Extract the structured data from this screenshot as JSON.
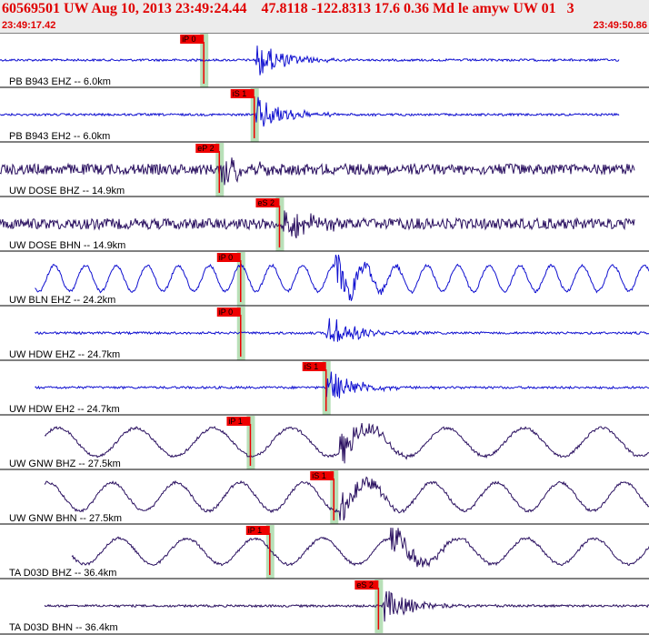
{
  "header": {
    "title": "60569501 UW Aug 10, 2013 23:49:24.44    47.8118 -122.8313 17.6 0.36 Md le amyw UW 01   3",
    "time_start": "23:49:17.42",
    "time_end": "23:49:50.86"
  },
  "colors": {
    "header_text": "#e00000",
    "header_bg": "#ececec",
    "pick_box": "#ee0000",
    "window_band": "#b8e0b8",
    "trace_blue": "#1010d0",
    "trace_dark": "#2a1060",
    "travel_curve": "#000000"
  },
  "chart_data": {
    "type": "line",
    "title": "60569501 UW Aug 10, 2013 23:49:24.44    47.8118 -122.8313 17.6 0.36 Md le amyw UW 01   3",
    "x_unit": "time",
    "xlim": [
      "23:49:17.42",
      "23:49:50.86"
    ],
    "x_span_seconds": 33.44,
    "series": [
      {
        "name": "PB B943 EHZ -- 6.0km",
        "color": "blue",
        "x_range_s": [
          0.0,
          31.9
        ],
        "pick": {
          "label": "iP 0",
          "time_s": 10.5
        },
        "amp": 0.45,
        "wave": "burst",
        "burst_s": 13.2,
        "period_s": 0.1
      },
      {
        "name": "PB B943 EH2 -- 6.0km",
        "color": "blue",
        "x_range_s": [
          0.0,
          31.9
        ],
        "pick": {
          "label": "iS 1",
          "time_s": 13.1
        },
        "amp": 0.05,
        "wave": "burst",
        "burst_s": 13.2,
        "period_s": 0.1
      },
      {
        "name": "UW DOSE BHZ -- 14.9km",
        "color": "dark",
        "x_range_s": [
          0.0,
          32.7
        ],
        "pick": {
          "label": "eP 2",
          "time_s": 11.3
        },
        "amp": 0.5,
        "wave": "noise",
        "burst_s": 11.4,
        "period_s": 0.15
      },
      {
        "name": "UW DOSE BHN -- 14.9km",
        "color": "dark",
        "x_range_s": [
          0.0,
          32.7
        ],
        "pick": {
          "label": "eS 2",
          "time_s": 14.4
        },
        "amp": 0.5,
        "wave": "noise",
        "burst_s": 14.6,
        "period_s": 0.15
      },
      {
        "name": "UW BLN EHZ -- 24.2km",
        "color": "blue",
        "x_range_s": [
          1.8,
          33.9
        ],
        "pick": {
          "label": "iP 0",
          "time_s": 12.4
        },
        "amp": 0.55,
        "wave": "slow",
        "burst_s": 17.3,
        "period_s": 1.6
      },
      {
        "name": "UW HDW EHZ -- 24.7km",
        "color": "blue",
        "x_range_s": [
          1.8,
          33.9
        ],
        "pick": {
          "label": "iP 0",
          "time_s": 12.4
        },
        "amp": 0.05,
        "wave": "burst",
        "burst_s": 16.8,
        "period_s": 0.1
      },
      {
        "name": "UW HDW EH2 -- 24.7km",
        "color": "blue",
        "x_range_s": [
          1.8,
          33.9
        ],
        "pick": {
          "label": "iS 1",
          "time_s": 16.8
        },
        "amp": 0.05,
        "wave": "burst",
        "burst_s": 16.8,
        "period_s": 0.1
      },
      {
        "name": "UW GNW BHZ -- 27.5km",
        "color": "dark",
        "x_range_s": [
          2.3,
          34.2
        ],
        "pick": {
          "label": "iP 1",
          "time_s": 12.9
        },
        "amp": 0.6,
        "wave": "slow",
        "burst_s": 17.5,
        "period_s": 4.0
      },
      {
        "name": "UW GNW BHN -- 27.5km",
        "color": "dark",
        "x_range_s": [
          2.3,
          34.2
        ],
        "pick": {
          "label": "iS 1",
          "time_s": 17.2
        },
        "amp": 0.6,
        "wave": "slow",
        "burst_s": 17.5,
        "period_s": 3.3
      },
      {
        "name": "TA D03D BHZ -- 36.4km",
        "color": "dark",
        "x_range_s": [
          3.7,
          34.2
        ],
        "pick": {
          "label": "iP 1",
          "time_s": 13.9
        },
        "amp": 0.55,
        "wave": "slow",
        "burst_s": 20.1,
        "period_s": 3.5
      },
      {
        "name": "TA D03D BHN -- 36.4km",
        "color": "dark",
        "x_range_s": [
          2.3,
          34.2
        ],
        "pick": {
          "label": "eS 2",
          "time_s": 19.5
        },
        "amp": 0.05,
        "wave": "burst",
        "burst_s": 19.7,
        "period_s": 0.12
      }
    ]
  }
}
